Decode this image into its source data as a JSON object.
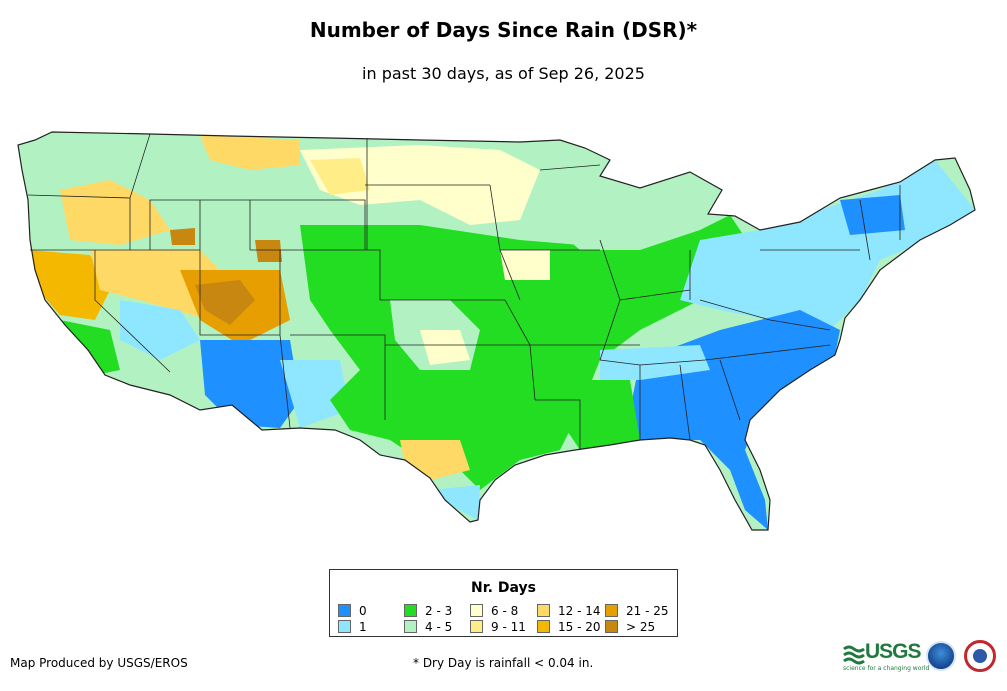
{
  "header": {
    "title": "Number of Days Since Rain (DSR)*",
    "subtitle": "in past 30 days, as of Sep 26, 2025"
  },
  "legend": {
    "title": "Nr. Days",
    "items": [
      {
        "label": "0",
        "color": "#1e90ff"
      },
      {
        "label": "1",
        "color": "#8fe6ff"
      },
      {
        "label": "2 - 3",
        "color": "#22dd22"
      },
      {
        "label": "4 - 5",
        "color": "#b2f2c2"
      },
      {
        "label": "6 - 8",
        "color": "#ffffcc"
      },
      {
        "label": "9 - 11",
        "color": "#ffee88"
      },
      {
        "label": "12 - 14",
        "color": "#ffd966"
      },
      {
        "label": "15 - 20",
        "color": "#f5b800"
      },
      {
        "label": "21 - 25",
        "color": "#e69e00"
      },
      {
        "label": "> 25",
        "color": "#c88710"
      }
    ]
  },
  "footer": {
    "credit": "Map Produced by USGS/EROS",
    "note": "* Dry Day is rainfall < 0.04 in."
  },
  "logos": {
    "usgs": "USGS",
    "usgs_tagline": "science for a changing world",
    "noaa": "noaa-logo",
    "nws": "nws-logo"
  }
}
